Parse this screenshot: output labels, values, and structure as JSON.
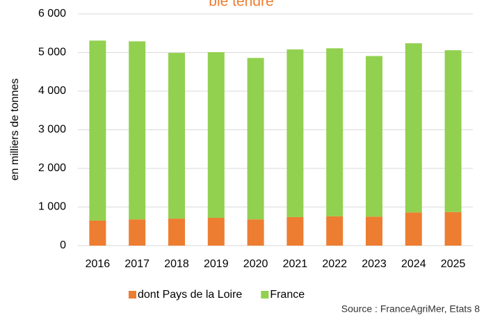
{
  "chart_data": {
    "type": "bar",
    "stacked": true,
    "title": "blé tendre",
    "y_axis_label": "en milliers de tonnes",
    "categories": [
      "2016",
      "2017",
      "2018",
      "2019",
      "2020",
      "2021",
      "2022",
      "2023",
      "2024",
      "2025"
    ],
    "series": [
      {
        "name": "dont Pays de la Loire",
        "color": "#ED7D31",
        "values": [
          650,
          680,
          700,
          720,
          680,
          740,
          760,
          750,
          860,
          870
        ]
      },
      {
        "name": "France",
        "color": "#92D050",
        "values": [
          4660,
          4610,
          4290,
          4290,
          4180,
          4340,
          4350,
          4160,
          4380,
          4190
        ]
      }
    ],
    "ylim": [
      0,
      6000
    ],
    "yticks": [
      0,
      {
        "value": 1000,
        "label": "1 000"
      },
      {
        "value": 2000,
        "label": "2 000"
      },
      {
        "value": 3000,
        "label": "3 000"
      },
      {
        "value": 4000,
        "label": "4 000"
      },
      {
        "value": 5000,
        "label": "5 000"
      },
      {
        "value": 6000,
        "label": "6 000"
      }
    ],
    "grid": true,
    "legend": "bottom",
    "source": "Source : FranceAgriMer, Etats 8"
  }
}
